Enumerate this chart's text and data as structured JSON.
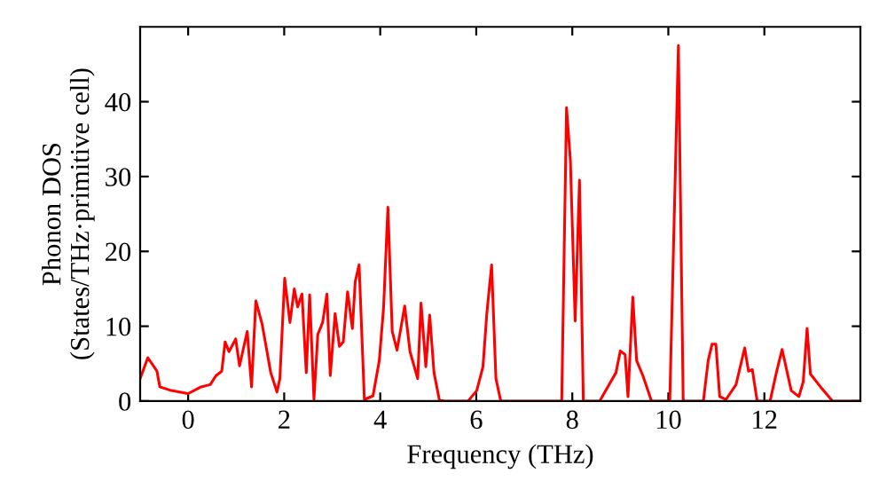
{
  "chart_data": {
    "type": "line",
    "xlabel": "Frequency (THz)",
    "ylabel": "Phonon DOS\n(States/THz·primitive cell)",
    "xlim": [
      -1,
      14
    ],
    "ylim": [
      0,
      50
    ],
    "xticks": [
      0,
      2,
      4,
      6,
      8,
      10,
      12
    ],
    "yticks": [
      0,
      10,
      20,
      30,
      40
    ],
    "grid": false,
    "marker": "none",
    "line_style": "solid",
    "series": [
      {
        "color": "#ff0000",
        "x": [
          -1.0,
          -0.84,
          -0.65,
          -0.59,
          -0.35,
          0.0,
          0.27,
          0.46,
          0.58,
          0.7,
          0.77,
          0.85,
          0.99,
          1.07,
          1.23,
          1.32,
          1.41,
          1.54,
          1.72,
          1.85,
          1.91,
          2.01,
          2.12,
          2.21,
          2.28,
          2.37,
          2.46,
          2.53,
          2.62,
          2.7,
          2.8,
          2.89,
          2.96,
          3.06,
          3.15,
          3.23,
          3.32,
          3.42,
          3.48,
          3.56,
          3.67,
          3.85,
          3.98,
          4.07,
          4.16,
          4.25,
          4.35,
          4.51,
          4.62,
          4.78,
          4.85,
          4.95,
          5.03,
          5.12,
          5.23,
          5.33,
          5.83,
          6.01,
          6.14,
          6.22,
          6.32,
          6.41,
          6.51,
          7.78,
          7.88,
          7.96,
          8.06,
          8.15,
          8.23,
          8.57,
          8.91,
          9.0,
          9.1,
          9.16,
          9.26,
          9.34,
          9.47,
          9.65,
          10.03,
          10.21,
          10.31,
          10.73,
          10.83,
          10.91,
          10.99,
          11.07,
          11.2,
          11.41,
          11.59,
          11.67,
          11.75,
          11.85,
          12.12,
          12.25,
          12.37,
          12.56,
          12.72,
          12.81,
          12.89,
          12.96,
          13.17,
          13.42,
          14.0
        ],
        "values": [
          3.0,
          5.8,
          4.0,
          1.9,
          1.4,
          1.0,
          1.9,
          2.2,
          3.4,
          4.0,
          7.9,
          6.6,
          8.3,
          4.7,
          9.3,
          1.9,
          13.4,
          10.3,
          3.8,
          1.2,
          3.0,
          16.4,
          10.5,
          15.0,
          12.6,
          14.3,
          3.8,
          14.2,
          0.2,
          8.9,
          10.5,
          14.3,
          3.4,
          11.7,
          7.3,
          7.9,
          14.6,
          9.7,
          16.0,
          18.2,
          0.2,
          0.7,
          5.4,
          12.5,
          25.9,
          9.3,
          6.8,
          12.7,
          6.6,
          3.0,
          13.1,
          4.6,
          11.5,
          3.8,
          0.2,
          0,
          0,
          1.4,
          4.6,
          11.7,
          18.2,
          3.0,
          0,
          0,
          39.2,
          32.2,
          10.7,
          29.5,
          0,
          0,
          3.8,
          6.7,
          6.2,
          0.6,
          13.9,
          5.4,
          3.4,
          0,
          0,
          47.5,
          0,
          0,
          5.4,
          7.6,
          7.6,
          0.6,
          0.2,
          2.2,
          7.1,
          4.0,
          4.2,
          0,
          0,
          3.8,
          6.9,
          1.4,
          0.6,
          2.6,
          9.7,
          3.6,
          1.9,
          0,
          0
        ]
      }
    ]
  }
}
